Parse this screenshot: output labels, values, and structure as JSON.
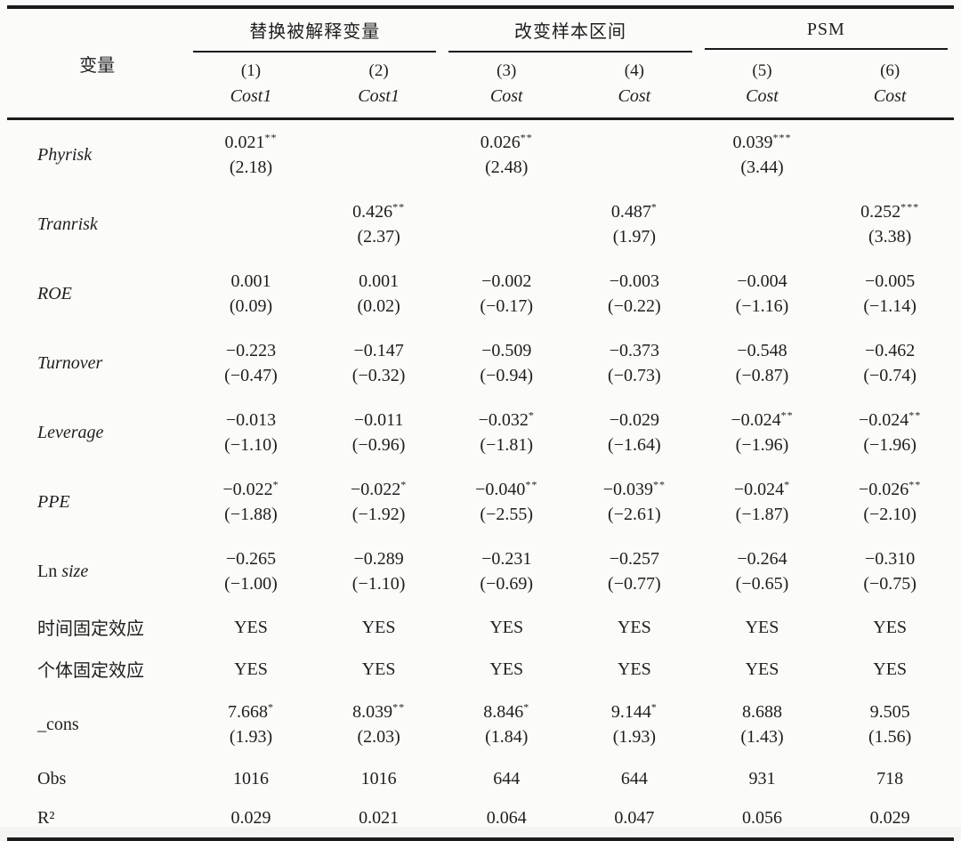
{
  "colors": {
    "text": "#1e1e1e",
    "rule": "#1a1a1a",
    "background": "#fbfbf9"
  },
  "table": {
    "header": {
      "variable_label": "变量",
      "groups": [
        {
          "label": "替换被解释变量"
        },
        {
          "label": "改变样本区间"
        },
        {
          "label": "PSM"
        }
      ],
      "model_numbers": [
        "(1)",
        "(2)",
        "(3)",
        "(4)",
        "(5)",
        "(6)"
      ],
      "dep_vars": [
        "Cost1",
        "Cost1",
        "Cost",
        "Cost",
        "Cost",
        "Cost"
      ]
    },
    "rows": [
      {
        "label": "Phyrisk",
        "label_style": "italic",
        "cells": [
          {
            "c": "0.021",
            "s": "**",
            "t": "(2.18)"
          },
          null,
          {
            "c": "0.026",
            "s": "**",
            "t": "(2.48)"
          },
          null,
          {
            "c": "0.039",
            "s": "***",
            "t": "(3.44)"
          },
          null
        ]
      },
      {
        "label": "Tranrisk",
        "label_style": "italic",
        "cells": [
          null,
          {
            "c": "0.426",
            "s": "**",
            "t": "(2.37)"
          },
          null,
          {
            "c": "0.487",
            "s": "*",
            "t": "(1.97)"
          },
          null,
          {
            "c": "0.252",
            "s": "***",
            "t": "(3.38)"
          }
        ]
      },
      {
        "label": "ROE",
        "label_style": "italic",
        "cells": [
          {
            "c": "0.001",
            "t": "(0.09)"
          },
          {
            "c": "0.001",
            "t": "(0.02)"
          },
          {
            "c": "−0.002",
            "t": "(−0.17)"
          },
          {
            "c": "−0.003",
            "t": "(−0.22)"
          },
          {
            "c": "−0.004",
            "t": "(−1.16)"
          },
          {
            "c": "−0.005",
            "t": "(−1.14)"
          }
        ]
      },
      {
        "label": "Turnover",
        "label_style": "italic",
        "cells": [
          {
            "c": "−0.223",
            "t": "(−0.47)"
          },
          {
            "c": "−0.147",
            "t": "(−0.32)"
          },
          {
            "c": "−0.509",
            "t": "(−0.94)"
          },
          {
            "c": "−0.373",
            "t": "(−0.73)"
          },
          {
            "c": "−0.548",
            "t": "(−0.87)"
          },
          {
            "c": "−0.462",
            "t": "(−0.74)"
          }
        ]
      },
      {
        "label": "Leverage",
        "label_style": "italic",
        "cells": [
          {
            "c": "−0.013",
            "t": "(−1.10)"
          },
          {
            "c": "−0.011",
            "t": "(−0.96)"
          },
          {
            "c": "−0.032",
            "s": "*",
            "t": "(−1.81)"
          },
          {
            "c": "−0.029",
            "t": "(−1.64)"
          },
          {
            "c": "−0.024",
            "s": "**",
            "t": "(−1.96)"
          },
          {
            "c": "−0.024",
            "s": "**",
            "t": "(−1.96)"
          }
        ]
      },
      {
        "label": "PPE",
        "label_style": "italic",
        "cells": [
          {
            "c": "−0.022",
            "s": "*",
            "t": "(−1.88)"
          },
          {
            "c": "−0.022",
            "s": "*",
            "t": "(−1.92)"
          },
          {
            "c": "−0.040",
            "s": "**",
            "t": "(−2.55)"
          },
          {
            "c": "−0.039",
            "s": "**",
            "t": "(−2.61)"
          },
          {
            "c": "−0.024",
            "s": "*",
            "t": "(−1.87)"
          },
          {
            "c": "−0.026",
            "s": "**",
            "t": "(−2.10)"
          }
        ]
      },
      {
        "label": "Ln size",
        "label_style": "mixed",
        "cells": [
          {
            "c": "−0.265",
            "t": "(−1.00)"
          },
          {
            "c": "−0.289",
            "t": "(−1.10)"
          },
          {
            "c": "−0.231",
            "t": "(−0.69)"
          },
          {
            "c": "−0.257",
            "t": "(−0.77)"
          },
          {
            "c": "−0.264",
            "t": "(−0.65)"
          },
          {
            "c": "−0.310",
            "t": "(−0.75)"
          }
        ]
      },
      {
        "label": "时间固定效应",
        "label_style": "roman",
        "cells": [
          "YES",
          "YES",
          "YES",
          "YES",
          "YES",
          "YES"
        ]
      },
      {
        "label": "个体固定效应",
        "label_style": "roman",
        "cells": [
          "YES",
          "YES",
          "YES",
          "YES",
          "YES",
          "YES"
        ]
      },
      {
        "label": "_cons",
        "label_style": "roman",
        "cells": [
          {
            "c": "7.668",
            "s": "*",
            "t": "(1.93)"
          },
          {
            "c": "8.039",
            "s": "**",
            "t": "(2.03)"
          },
          {
            "c": "8.846",
            "s": "*",
            "t": "(1.84)"
          },
          {
            "c": "9.144",
            "s": "*",
            "t": "(1.93)"
          },
          {
            "c": "8.688",
            "t": "(1.43)"
          },
          {
            "c": "9.505",
            "t": "(1.56)"
          }
        ]
      },
      {
        "label": "Obs",
        "label_style": "roman",
        "cells": [
          "1016",
          "1016",
          "644",
          "644",
          "931",
          "718"
        ]
      },
      {
        "label": "R²",
        "label_style": "roman",
        "cells": [
          "0.029",
          "0.021",
          "0.064",
          "0.047",
          "0.056",
          "0.029"
        ]
      }
    ]
  }
}
